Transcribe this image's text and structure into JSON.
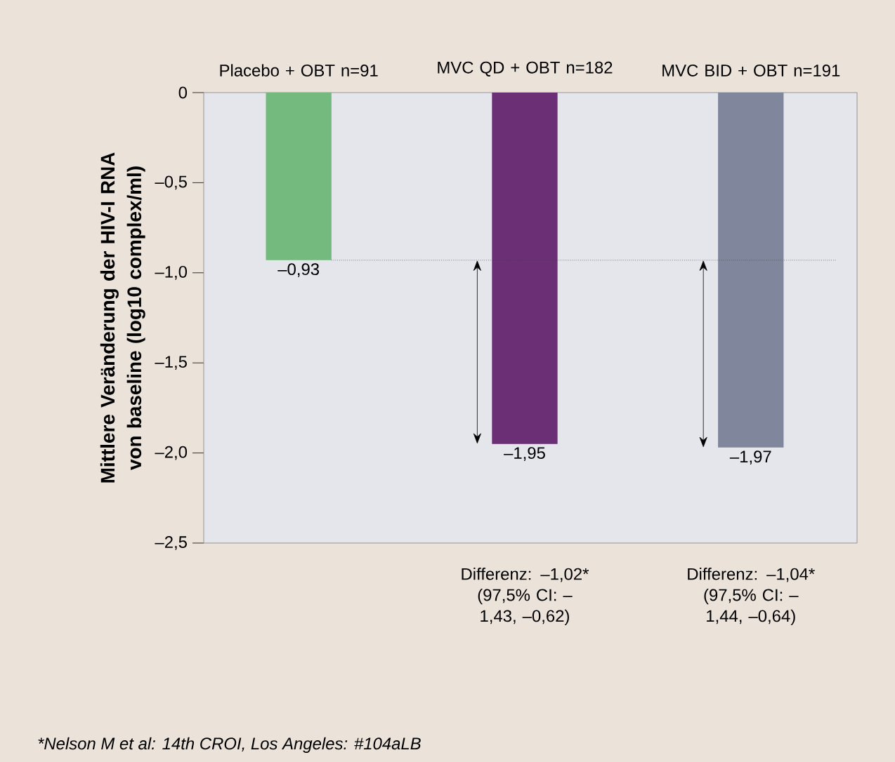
{
  "chart_data": {
    "type": "bar",
    "ylabel": "Mittlere Veränderung der HIV-I RNA von baseline (log10 complex/ml)",
    "categories": [
      "Placebo + OBT n=91",
      "MVC QD + OBT n=182",
      "MVC BID + OBT n=191"
    ],
    "values": [
      -0.93,
      -1.95,
      -1.97
    ],
    "colors": [
      "#74b97d",
      "#6b2f76",
      "#80869c"
    ],
    "value_labels": [
      "–0,93",
      "–1,95",
      "–1,97"
    ],
    "ylim": [
      -2.5,
      0
    ],
    "yticks": [
      {
        "value": -2.5,
        "label": "–2,5"
      },
      {
        "value": -2.0,
        "label": "–2,0"
      },
      {
        "value": -1.5,
        "label": "–1,5"
      },
      {
        "value": -1.0,
        "label": "–1,0"
      },
      {
        "value": -0.5,
        "label": "–0,5"
      },
      0
    ],
    "ref_lines": [
      {
        "axis": "y",
        "value": -0.93,
        "line_style": "dotted",
        "color": "#444444"
      }
    ],
    "annotations": [
      "Differenz: –1,02* (97,5% CI: –1,43, –0,62)",
      "Differenz: –1,04* (97,5% CI: –1,44, –0,64)",
      "*Nelson M et al: 14th CROI, Los Angeles: #104aLB"
    ],
    "grid": false
  }
}
